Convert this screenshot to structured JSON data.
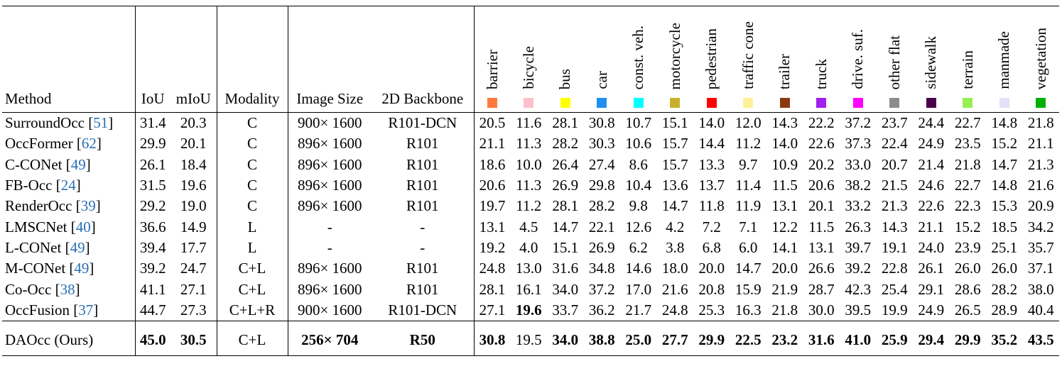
{
  "table": {
    "headers": [
      "Method",
      "IoU",
      "mIoU",
      "Modality",
      "Image Size",
      "2D Backbone"
    ],
    "classes": [
      {
        "name": "barrier",
        "color": "#ff7a3c"
      },
      {
        "name": "bicycle",
        "color": "#ffc0cb"
      },
      {
        "name": "bus",
        "color": "#ffff00"
      },
      {
        "name": "car",
        "color": "#1e8ff0"
      },
      {
        "name": "const. veh.",
        "color": "#00ffff"
      },
      {
        "name": "motorcycle",
        "color": "#c8b02e"
      },
      {
        "name": "pedestrian",
        "color": "#ff0000"
      },
      {
        "name": "traffic cone",
        "color": "#fff09a"
      },
      {
        "name": "trailer",
        "color": "#8b3a10"
      },
      {
        "name": "truck",
        "color": "#a020f0"
      },
      {
        "name": "drive. suf.",
        "color": "#ff00ff"
      },
      {
        "name": "other flat",
        "color": "#8c8c8c"
      },
      {
        "name": "sidewalk",
        "color": "#4b004b"
      },
      {
        "name": "terrain",
        "color": "#96f050"
      },
      {
        "name": "manmade",
        "color": "#e2e2f8"
      },
      {
        "name": "vegetation",
        "color": "#00af00"
      }
    ],
    "ref_open": "[",
    "ref_close": "]",
    "ref_color": "#2a6fb5",
    "rows": [
      {
        "method": "SurroundOcc",
        "ref": "51",
        "bold": [],
        "values": [
          "31.4",
          "20.3",
          "C",
          "900× 1600",
          "R101-DCN",
          "20.5",
          "11.6",
          "28.1",
          "30.8",
          "10.7",
          "15.1",
          "14.0",
          "12.0",
          "14.3",
          "22.2",
          "37.2",
          "23.7",
          "24.4",
          "22.7",
          "14.8",
          "21.8"
        ]
      },
      {
        "method": "OccFormer",
        "ref": "62",
        "bold": [],
        "values": [
          "29.9",
          "20.1",
          "C",
          "896× 1600",
          "R101",
          "21.1",
          "11.3",
          "28.2",
          "30.3",
          "10.6",
          "15.7",
          "14.4",
          "11.2",
          "14.0",
          "22.6",
          "37.3",
          "22.4",
          "24.9",
          "23.5",
          "15.2",
          "21.1"
        ]
      },
      {
        "method": "C-CONet",
        "ref": "49",
        "bold": [],
        "values": [
          "26.1",
          "18.4",
          "C",
          "896× 1600",
          "R101",
          "18.6",
          "10.0",
          "26.4",
          "27.4",
          "8.6",
          "15.7",
          "13.3",
          "9.7",
          "10.9",
          "20.2",
          "33.0",
          "20.7",
          "21.4",
          "21.8",
          "14.7",
          "21.3"
        ]
      },
      {
        "method": "FB-Occ",
        "ref": "24",
        "bold": [],
        "values": [
          "31.5",
          "19.6",
          "C",
          "896× 1600",
          "R101",
          "20.6",
          "11.3",
          "26.9",
          "29.8",
          "10.4",
          "13.6",
          "13.7",
          "11.4",
          "11.5",
          "20.6",
          "38.2",
          "21.5",
          "24.6",
          "22.7",
          "14.8",
          "21.6"
        ]
      },
      {
        "method": "RenderOcc",
        "ref": "39",
        "bold": [],
        "values": [
          "29.2",
          "19.0",
          "C",
          "896× 1600",
          "R101",
          "19.7",
          "11.2",
          "28.1",
          "28.2",
          "9.8",
          "14.7",
          "11.8",
          "11.9",
          "13.1",
          "20.1",
          "33.2",
          "21.3",
          "22.6",
          "22.3",
          "15.3",
          "20.9"
        ]
      },
      {
        "method": "LMSCNet",
        "ref": "40",
        "bold": [],
        "values": [
          "36.6",
          "14.9",
          "L",
          "-",
          "-",
          "13.1",
          "4.5",
          "14.7",
          "22.1",
          "12.6",
          "4.2",
          "7.2",
          "7.1",
          "12.2",
          "11.5",
          "26.3",
          "14.3",
          "21.1",
          "15.2",
          "18.5",
          "34.2"
        ]
      },
      {
        "method": "L-CONet",
        "ref": "49",
        "bold": [],
        "values": [
          "39.4",
          "17.7",
          "L",
          "-",
          "-",
          "19.2",
          "4.0",
          "15.1",
          "26.9",
          "6.2",
          "3.8",
          "6.8",
          "6.0",
          "14.1",
          "13.1",
          "39.7",
          "19.1",
          "24.0",
          "23.9",
          "25.1",
          "35.7"
        ]
      },
      {
        "method": "M-CONet",
        "ref": "49",
        "bold": [],
        "values": [
          "39.2",
          "24.7",
          "C+L",
          "896× 1600",
          "R101",
          "24.8",
          "13.0",
          "31.6",
          "34.8",
          "14.6",
          "18.0",
          "20.0",
          "14.7",
          "20.0",
          "26.6",
          "39.2",
          "22.8",
          "26.1",
          "26.0",
          "26.0",
          "37.1"
        ]
      },
      {
        "method": "Co-Occ",
        "ref": "38",
        "bold": [],
        "values": [
          "41.1",
          "27.1",
          "C+L",
          "896× 1600",
          "R101",
          "28.1",
          "16.1",
          "34.0",
          "37.2",
          "17.0",
          "21.6",
          "20.8",
          "15.9",
          "21.9",
          "28.7",
          "42.3",
          "25.4",
          "29.1",
          "28.6",
          "28.2",
          "38.0"
        ]
      },
      {
        "method": "OccFusion",
        "ref": "37",
        "bold": [
          6
        ],
        "values": [
          "44.7",
          "27.3",
          "C+L+R",
          "900× 1600",
          "R101-DCN",
          "27.1",
          "19.6",
          "33.7",
          "36.2",
          "21.7",
          "24.8",
          "25.3",
          "16.3",
          "21.8",
          "30.0",
          "39.5",
          "19.9",
          "24.9",
          "26.5",
          "28.9",
          "40.4"
        ]
      },
      {
        "method": "DAOcc (Ours)",
        "bold": [
          0,
          1,
          3,
          4,
          5,
          7,
          8,
          9,
          10,
          11,
          12,
          13,
          14,
          15,
          16,
          17,
          18,
          19,
          20
        ],
        "values": [
          "45.0",
          "30.5",
          "C+L",
          "256× 704",
          "R50",
          "30.8",
          "19.5",
          "34.0",
          "38.8",
          "25.0",
          "27.7",
          "29.9",
          "22.5",
          "23.2",
          "31.6",
          "41.0",
          "25.9",
          "29.4",
          "29.9",
          "35.2",
          "43.5"
        ]
      }
    ]
  }
}
